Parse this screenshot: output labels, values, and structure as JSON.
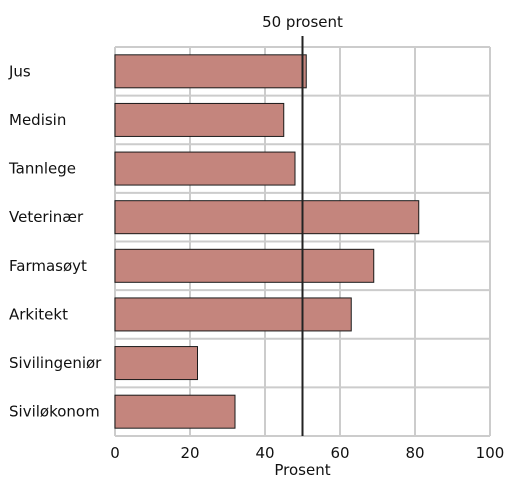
{
  "chart_data": {
    "type": "bar",
    "orientation": "horizontal",
    "categories": [
      "Jus",
      "Medisin",
      "Tannlege",
      "Veterinær",
      "Farmasøyt",
      "Arkitekt",
      "Sivilingeniør",
      "Siviløkonom"
    ],
    "values": [
      51,
      45,
      48,
      81,
      69,
      63,
      22,
      32
    ],
    "xlabel": "Prosent",
    "xlim": [
      0,
      100
    ],
    "xticks": [
      0,
      20,
      40,
      60,
      80,
      100
    ],
    "reference_line": {
      "value": 50,
      "label": "50 prosent"
    },
    "grid": true,
    "colors": {
      "bar_fill": "#c4857d",
      "bar_stroke": "#1a1a1a",
      "grid": "#cccccc",
      "reference": "#222222"
    }
  }
}
